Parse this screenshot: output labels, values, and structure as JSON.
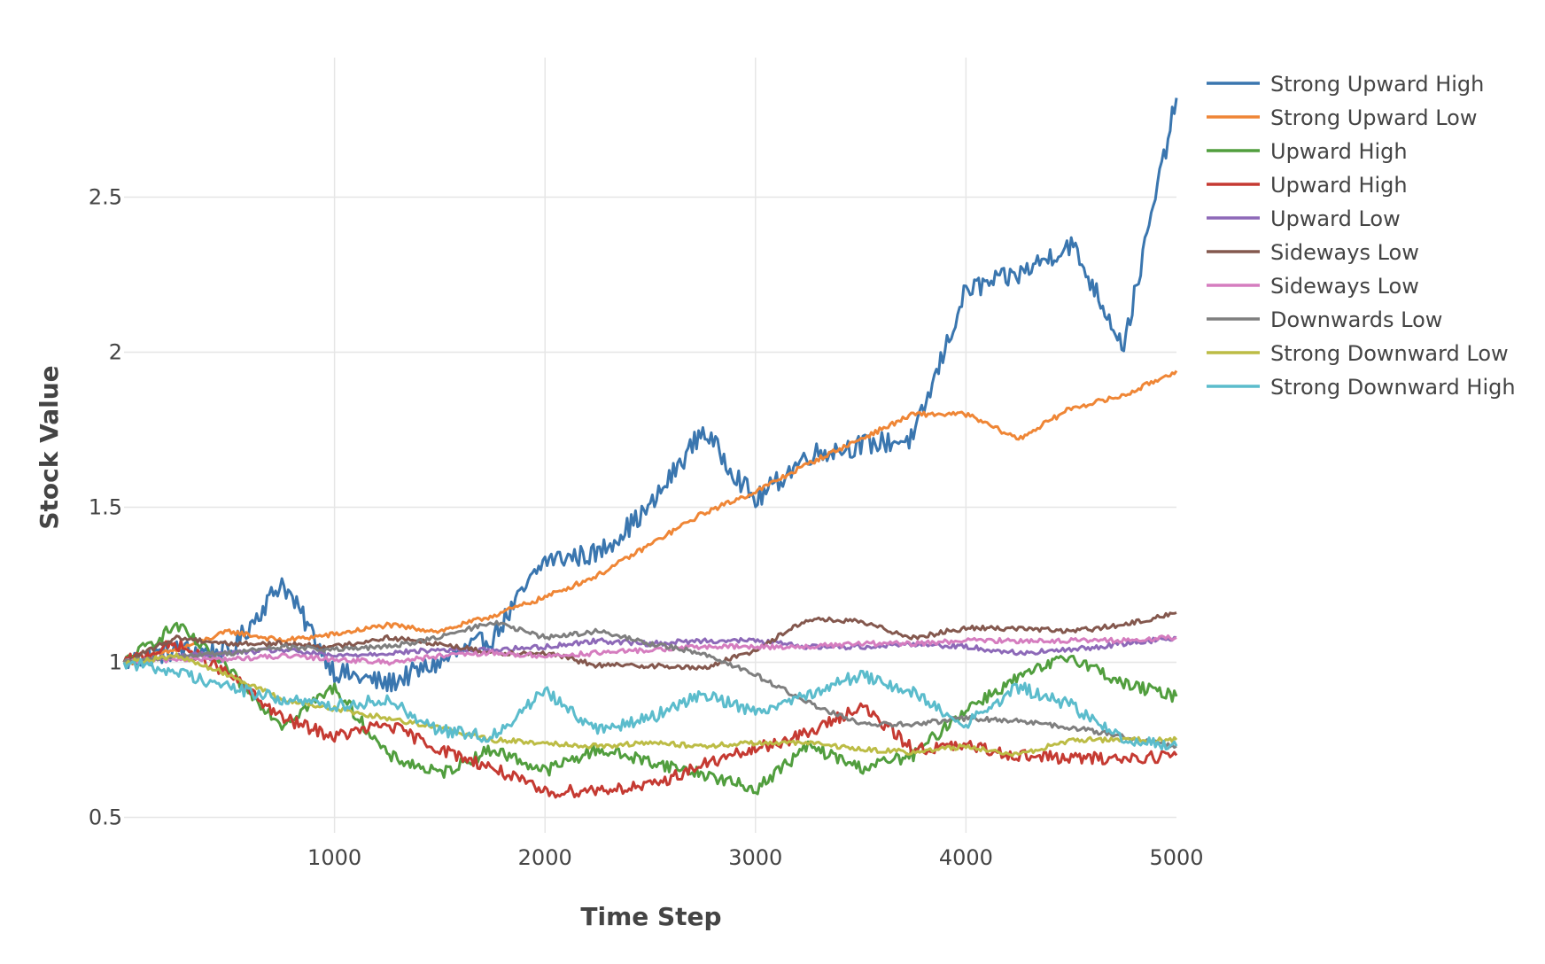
{
  "chart_data": {
    "type": "line",
    "title": "",
    "xlabel": "Time Step",
    "ylabel": "Stock Value",
    "xlim": [
      0,
      5000
    ],
    "ylim": [
      0.45,
      2.95
    ],
    "xticks": [
      1000,
      2000,
      3000,
      4000,
      5000
    ],
    "xtick_labels": [
      "1000",
      "2000",
      "3000",
      "4000",
      "5000"
    ],
    "yticks": [
      0.5,
      1,
      1.5,
      2,
      2.5
    ],
    "ytick_labels": [
      "0.5",
      "1",
      "1.5",
      "2",
      "2.5"
    ],
    "grid": true,
    "legend_position": "top-right, outside plot",
    "x": [
      0,
      250,
      500,
      750,
      1000,
      1250,
      1500,
      1750,
      2000,
      2250,
      2500,
      2750,
      3000,
      3250,
      3500,
      3750,
      4000,
      4250,
      4500,
      4750,
      5000
    ],
    "series": [
      {
        "name": "Strong Upward High",
        "color": "#3a76af",
        "values": [
          1.0,
          1.04,
          1.03,
          1.26,
          0.97,
          0.93,
          1.0,
          1.08,
          1.33,
          1.35,
          1.5,
          1.75,
          1.52,
          1.67,
          1.7,
          1.72,
          2.2,
          2.25,
          2.35,
          2.02,
          2.82
        ]
      },
      {
        "name": "Strong Upward Low",
        "color": "#ef8636",
        "values": [
          1.0,
          1.04,
          1.1,
          1.07,
          1.09,
          1.12,
          1.1,
          1.15,
          1.21,
          1.28,
          1.38,
          1.48,
          1.55,
          1.64,
          1.72,
          1.8,
          1.8,
          1.72,
          1.82,
          1.86,
          1.94
        ]
      },
      {
        "name": "Upward High",
        "color": "#519e3e",
        "values": [
          1.0,
          1.12,
          0.97,
          0.8,
          0.92,
          0.7,
          0.64,
          0.72,
          0.65,
          0.72,
          0.68,
          0.64,
          0.59,
          0.73,
          0.66,
          0.7,
          0.85,
          0.95,
          1.02,
          0.93,
          0.89
        ]
      },
      {
        "name": "Upward High",
        "color": "#c53a32",
        "values": [
          1.0,
          1.06,
          0.96,
          0.82,
          0.76,
          0.8,
          0.72,
          0.66,
          0.58,
          0.59,
          0.6,
          0.67,
          0.72,
          0.77,
          0.86,
          0.72,
          0.73,
          0.7,
          0.69,
          0.69,
          0.7
        ]
      },
      {
        "name": "Upward Low",
        "color": "#8d69b8",
        "values": [
          1.0,
          1.02,
          1.03,
          1.04,
          1.02,
          1.03,
          1.04,
          1.04,
          1.05,
          1.07,
          1.06,
          1.07,
          1.07,
          1.05,
          1.05,
          1.06,
          1.05,
          1.03,
          1.04,
          1.06,
          1.08
        ]
      },
      {
        "name": "Sideways Low",
        "color": "#84584e",
        "values": [
          1.0,
          1.08,
          1.06,
          1.06,
          1.05,
          1.08,
          1.06,
          1.03,
          1.03,
          0.99,
          0.99,
          0.98,
          1.04,
          1.14,
          1.13,
          1.08,
          1.11,
          1.11,
          1.1,
          1.12,
          1.16
        ]
      },
      {
        "name": "Sideways Low",
        "color": "#d57dbf",
        "values": [
          1.0,
          1.01,
          1.01,
          1.02,
          1.01,
          1.0,
          1.02,
          1.03,
          1.02,
          1.03,
          1.04,
          1.05,
          1.05,
          1.05,
          1.06,
          1.06,
          1.07,
          1.07,
          1.07,
          1.07,
          1.08
        ]
      },
      {
        "name": "Downwards Low",
        "color": "#7f7f7f",
        "values": [
          1.0,
          1.02,
          1.03,
          1.05,
          1.04,
          1.05,
          1.08,
          1.13,
          1.08,
          1.1,
          1.06,
          1.03,
          0.96,
          0.87,
          0.8,
          0.8,
          0.82,
          0.81,
          0.79,
          0.76,
          0.73
        ]
      },
      {
        "name": "Strong Downward Low",
        "color": "#bcbc45",
        "values": [
          1.0,
          1.02,
          0.96,
          0.88,
          0.85,
          0.82,
          0.79,
          0.75,
          0.74,
          0.73,
          0.74,
          0.73,
          0.74,
          0.74,
          0.72,
          0.71,
          0.73,
          0.7,
          0.75,
          0.75,
          0.75
        ]
      },
      {
        "name": "Strong Downward High",
        "color": "#5bbccc",
        "values": [
          1.0,
          0.97,
          0.92,
          0.88,
          0.86,
          0.88,
          0.78,
          0.76,
          0.91,
          0.78,
          0.82,
          0.9,
          0.84,
          0.9,
          0.96,
          0.9,
          0.8,
          0.92,
          0.86,
          0.75,
          0.73
        ]
      }
    ]
  }
}
